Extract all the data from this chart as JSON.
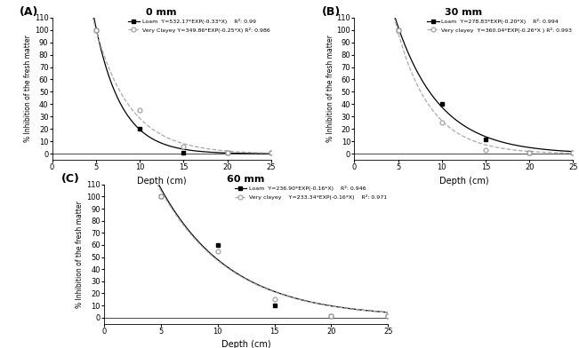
{
  "panels": [
    {
      "label": "A",
      "title": "0 mm",
      "loam": {
        "x_data": [
          5,
          10,
          15,
          20,
          25
        ],
        "y_data": [
          100,
          20,
          1,
          1,
          1
        ],
        "eq": "Y=532.17*EXP(-0.33*X)",
        "r2": "R²: 0.99",
        "a": 532.17,
        "b": -0.33
      },
      "vclay": {
        "x_data": [
          5,
          10,
          15,
          20,
          25
        ],
        "y_data": [
          100,
          35,
          6,
          1,
          1
        ],
        "eq": "Y=349.86*EXP(-0.25*X)",
        "r2": "R²: 0.986",
        "a": 349.86,
        "b": -0.25
      },
      "loam_label": "Loam  Y=532.17*EXP(-0.33*X)    R²: 0.99",
      "vclay_label": "Very Clayey Y=349.86*EXP(-0.25*X) R²: 0.986"
    },
    {
      "label": "B",
      "title": "30 mm",
      "loam": {
        "x_data": [
          5,
          10,
          15,
          20,
          25
        ],
        "y_data": [
          100,
          40,
          12,
          1,
          1
        ],
        "eq": "Y=278.83*EXP(-0.20*X)",
        "r2": "R²: 0.994",
        "a": 278.83,
        "b": -0.2
      },
      "vclay": {
        "x_data": [
          5,
          10,
          15,
          20,
          25
        ],
        "y_data": [
          100,
          25,
          3,
          1,
          1
        ],
        "eq": "Y=360.04*EXP(-0.26*X )",
        "r2": "R²: 0.993",
        "a": 360.04,
        "b": -0.26
      },
      "loam_label": "Loam  Y=278.83*EXP(-0.20*X)    R²: 0.994",
      "vclay_label": "Very clayey  Y=360.04*EXP(-0.26*X ) R²: 0.993"
    },
    {
      "label": "C",
      "title": "60 mm",
      "loam": {
        "x_data": [
          5,
          10,
          15,
          20,
          25
        ],
        "y_data": [
          100,
          60,
          10,
          1,
          1
        ],
        "eq": "Y=236.90*EXP(-0.16*X)",
        "r2": "R²: 0.946",
        "a": 236.9,
        "b": -0.16
      },
      "vclay": {
        "x_data": [
          5,
          10,
          15,
          20,
          25
        ],
        "y_data": [
          100,
          55,
          15,
          1,
          1
        ],
        "eq": "Y=233.34*EXP(-0.16*X)",
        "r2": "R²: 0.971",
        "a": 233.34,
        "b": -0.16
      },
      "loam_label": "Loam  Y=236.90*EXP(-0.16*X)    R²: 0.946",
      "vclay_label": "Very clayey    Y=233.34*EXP(-0.16*X)    R²: 0.971"
    }
  ],
  "ylabel": "% Inhibition of the fresh matter",
  "xlabel": "Depth (cm)",
  "ylim": [
    -5,
    110
  ],
  "xlim": [
    0,
    25
  ],
  "xticks": [
    0,
    5,
    10,
    15,
    20,
    25
  ],
  "yticks": [
    0,
    10,
    20,
    30,
    40,
    50,
    60,
    70,
    80,
    90,
    100,
    110
  ],
  "loam_color": "black",
  "vclay_color": "#aaaaaa"
}
